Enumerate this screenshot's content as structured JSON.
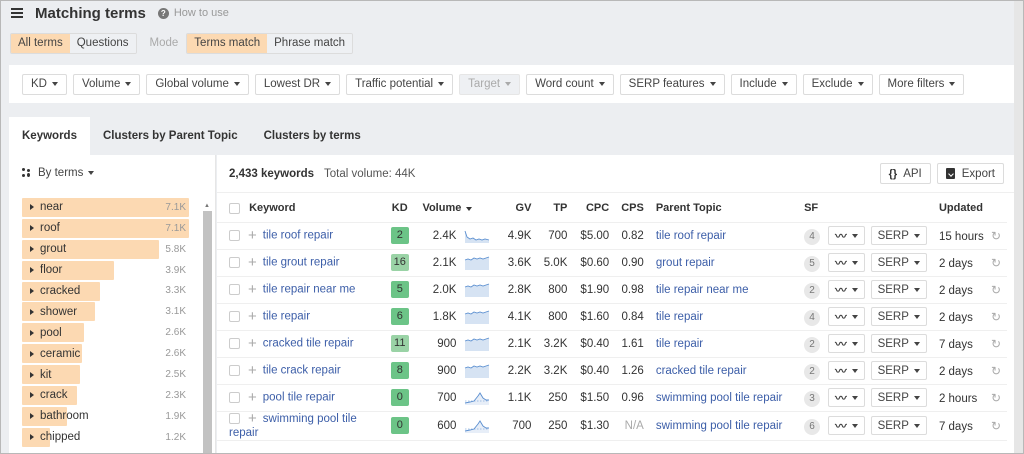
{
  "header": {
    "title": "Matching terms",
    "help_label": "How to use"
  },
  "modebar": {
    "scope": [
      {
        "label": "All terms",
        "active": true
      },
      {
        "label": "Questions",
        "active": false
      }
    ],
    "mode_label": "Mode",
    "match": [
      {
        "label": "Terms match",
        "active": true
      },
      {
        "label": "Phrase match",
        "active": false
      }
    ]
  },
  "filters": [
    {
      "label": "KD",
      "disabled": false
    },
    {
      "label": "Volume",
      "disabled": false
    },
    {
      "label": "Global volume",
      "disabled": false
    },
    {
      "label": "Lowest DR",
      "disabled": false
    },
    {
      "label": "Traffic potential",
      "disabled": false
    },
    {
      "label": "Target",
      "disabled": true
    },
    {
      "label": "Word count",
      "disabled": false
    },
    {
      "label": "SERP features",
      "disabled": false
    },
    {
      "label": "Include",
      "disabled": false
    },
    {
      "label": "Exclude",
      "disabled": false
    },
    {
      "label": "More filters",
      "disabled": false
    }
  ],
  "tabs": [
    {
      "label": "Keywords",
      "active": true
    },
    {
      "label": "Clusters by Parent Topic",
      "active": false
    },
    {
      "label": "Clusters by terms",
      "active": false
    }
  ],
  "sidebar": {
    "group_label": "By terms",
    "terms": [
      {
        "label": "near",
        "value": "7.1K",
        "pct": 100
      },
      {
        "label": "roof",
        "value": "7.1K",
        "pct": 100
      },
      {
        "label": "grout",
        "value": "5.8K",
        "pct": 82
      },
      {
        "label": "floor",
        "value": "3.9K",
        "pct": 55
      },
      {
        "label": "cracked",
        "value": "3.3K",
        "pct": 47
      },
      {
        "label": "shower",
        "value": "3.1K",
        "pct": 44
      },
      {
        "label": "pool",
        "value": "2.6K",
        "pct": 37
      },
      {
        "label": "ceramic",
        "value": "2.6K",
        "pct": 36
      },
      {
        "label": "kit",
        "value": "2.5K",
        "pct": 35
      },
      {
        "label": "crack",
        "value": "2.3K",
        "pct": 33
      },
      {
        "label": "bathroom",
        "value": "1.9K",
        "pct": 27
      },
      {
        "label": "chipped",
        "value": "1.2K",
        "pct": 17
      }
    ]
  },
  "main": {
    "keyword_count": "2,433 keywords",
    "total_volume": "Total volume: 44K",
    "api_label": "API",
    "export_label": "Export",
    "columns": {
      "keyword": "Keyword",
      "kd": "KD",
      "volume": "Volume",
      "gv": "GV",
      "tp": "TP",
      "cpc": "CPC",
      "cps": "CPS",
      "parent_topic": "Parent Topic",
      "sf": "SF",
      "updated": "Updated"
    },
    "serp_label": "SERP",
    "rows": [
      {
        "keyword": "tile roof repair",
        "kd": "2",
        "kd_shade": "g1",
        "volume": "2.4K",
        "trend": "down",
        "gv": "4.9K",
        "tp": "700",
        "cpc": "$5.00",
        "cps": "0.82",
        "parent_topic": "tile roof repair",
        "sf": "4",
        "updated": "15 hours"
      },
      {
        "keyword": "tile grout repair",
        "kd": "16",
        "kd_shade": "g2",
        "volume": "2.1K",
        "trend": "flat",
        "gv": "3.6K",
        "tp": "5.0K",
        "cpc": "$0.60",
        "cps": "0.90",
        "parent_topic": "grout repair",
        "sf": "5",
        "updated": "2 days"
      },
      {
        "keyword": "tile repair near me",
        "kd": "5",
        "kd_shade": "g1",
        "volume": "2.0K",
        "trend": "flat",
        "gv": "2.8K",
        "tp": "800",
        "cpc": "$1.90",
        "cps": "0.98",
        "parent_topic": "tile repair near me",
        "sf": "2",
        "updated": "2 days"
      },
      {
        "keyword": "tile repair",
        "kd": "6",
        "kd_shade": "g1",
        "volume": "1.8K",
        "trend": "flat",
        "gv": "4.1K",
        "tp": "800",
        "cpc": "$1.60",
        "cps": "0.84",
        "parent_topic": "tile repair",
        "sf": "4",
        "updated": "2 days"
      },
      {
        "keyword": "cracked tile repair",
        "kd": "11",
        "kd_shade": "g2",
        "volume": "900",
        "trend": "flat",
        "gv": "2.1K",
        "tp": "3.2K",
        "cpc": "$0.40",
        "cps": "1.61",
        "parent_topic": "tile repair",
        "sf": "2",
        "updated": "7 days"
      },
      {
        "keyword": "tile crack repair",
        "kd": "8",
        "kd_shade": "g1",
        "volume": "900",
        "trend": "flat",
        "gv": "2.2K",
        "tp": "3.2K",
        "cpc": "$0.40",
        "cps": "1.26",
        "parent_topic": "cracked tile repair",
        "sf": "2",
        "updated": "2 days"
      },
      {
        "keyword": "pool tile repair",
        "kd": "0",
        "kd_shade": "g1",
        "volume": "700",
        "trend": "peak",
        "gv": "1.1K",
        "tp": "250",
        "cpc": "$1.50",
        "cps": "0.96",
        "parent_topic": "swimming pool tile repair",
        "sf": "3",
        "updated": "2 hours"
      },
      {
        "keyword": "swimming pool tile repair",
        "kd": "0",
        "kd_shade": "g1",
        "volume": "600",
        "trend": "peak",
        "gv": "700",
        "tp": "250",
        "cpc": "$1.30",
        "cps": "N/A",
        "parent_topic": "swimming pool tile repair",
        "sf": "6",
        "updated": "7 days"
      }
    ]
  },
  "colors": {
    "accent_orange": "#fcd9b2",
    "link_blue": "#3c5ea8",
    "kd_easy": "#6cc487",
    "kd_light": "#9ad3a6",
    "sparkline": "#5b8fd0"
  }
}
